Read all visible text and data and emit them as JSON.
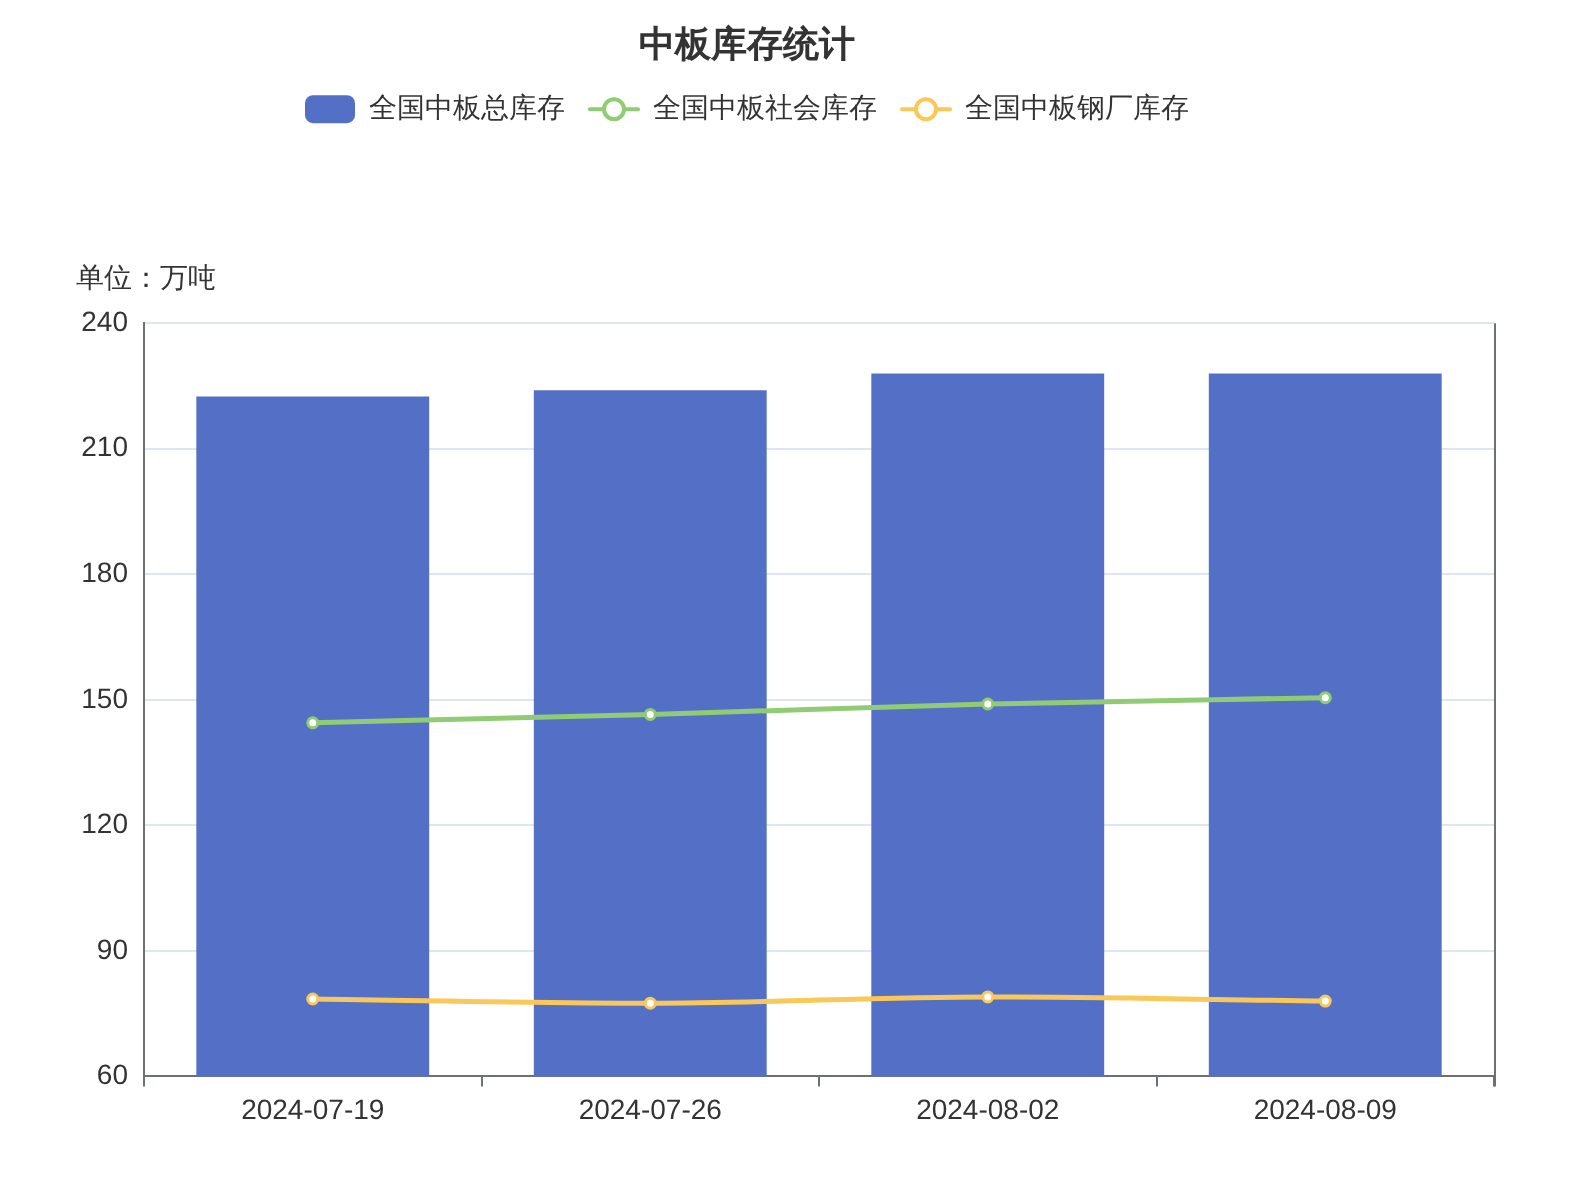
{
  "chart_data": {
    "type": "bar",
    "title": "中板库存统计",
    "ylabel": "单位：万吨",
    "categories": [
      "2024-07-19",
      "2024-07-26",
      "2024-08-02",
      "2024-08-09"
    ],
    "series": [
      {
        "name": "全国中板总库存",
        "color": "#5470c6",
        "values": [
          222.5,
          224,
          228,
          228
        ]
      },
      {
        "name": "全国中板社会库存",
        "type": "line",
        "color": "#91cc75",
        "values": [
          144.5,
          146.5,
          149,
          150.5
        ]
      },
      {
        "name": "全国中板钢厂库存",
        "type": "line",
        "color": "#fac858",
        "values": [
          78.5,
          77.5,
          79,
          78
        ]
      }
    ],
    "ylim": [
      60,
      240
    ],
    "yticks": [
      60,
      90,
      120,
      150,
      180,
      210,
      240
    ],
    "grid": "y",
    "legend": "top",
    "marker": "circle"
  }
}
